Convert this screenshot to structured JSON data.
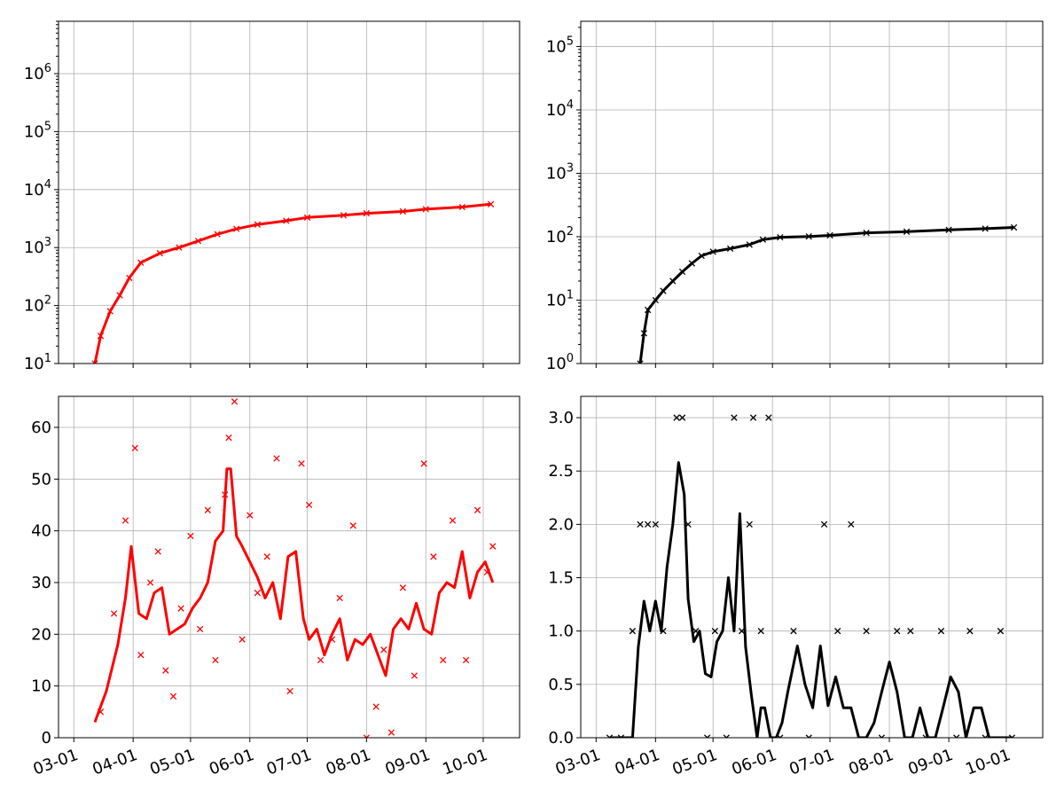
{
  "figure": {
    "x_tick_labels": [
      "03-01",
      "04-01",
      "05-01",
      "06-01",
      "07-01",
      "08-01",
      "09-01",
      "10-01"
    ],
    "x_tick_dates": [
      "2020-03-01",
      "2020-04-01",
      "2020-05-01",
      "2020-06-01",
      "2020-07-01",
      "2020-08-01",
      "2020-09-01",
      "2020-10-01"
    ],
    "x_range": [
      "2020-02-22",
      "2020-10-20"
    ],
    "x_tick_rotation_deg": 20
  },
  "chart_data": [
    {
      "type": "line",
      "title": "",
      "xlabel": "",
      "ylabel": "",
      "yscale": "log",
      "ylim": [
        10,
        8000000
      ],
      "y_tick_labels": [
        "10^1",
        "10^2",
        "10^3",
        "10^4",
        "10^5",
        "10^6"
      ],
      "grid": true,
      "color": "#ff0000",
      "marker": "x",
      "x": [
        "2020-03-12",
        "2020-03-15",
        "2020-03-20",
        "2020-03-25",
        "2020-03-30",
        "2020-04-05",
        "2020-04-15",
        "2020-04-25",
        "2020-05-05",
        "2020-05-15",
        "2020-05-25",
        "2020-06-05",
        "2020-06-20",
        "2020-07-01",
        "2020-07-20",
        "2020-08-01",
        "2020-08-20",
        "2020-09-01",
        "2020-09-20",
        "2020-10-05"
      ],
      "values": [
        10,
        30,
        80,
        150,
        300,
        550,
        800,
        1000,
        1300,
        1700,
        2100,
        2500,
        2900,
        3300,
        3600,
        3900,
        4200,
        4600,
        5000,
        5600
      ]
    },
    {
      "type": "line",
      "title": "",
      "xlabel": "",
      "ylabel": "",
      "yscale": "log",
      "ylim": [
        1,
        250000
      ],
      "y_tick_labels": [
        "10^0",
        "10^1",
        "10^2",
        "10^3",
        "10^4",
        "10^5"
      ],
      "grid": true,
      "color": "#000000",
      "marker": "x",
      "x": [
        "2020-03-24",
        "2020-03-26",
        "2020-03-28",
        "2020-04-01",
        "2020-04-05",
        "2020-04-10",
        "2020-04-15",
        "2020-04-20",
        "2020-04-25",
        "2020-05-01",
        "2020-05-10",
        "2020-05-20",
        "2020-05-27",
        "2020-06-05",
        "2020-06-20",
        "2020-07-01",
        "2020-07-20",
        "2020-08-10",
        "2020-09-01",
        "2020-09-20",
        "2020-10-05"
      ],
      "values": [
        1,
        3,
        7,
        10,
        14,
        20,
        28,
        38,
        50,
        58,
        65,
        75,
        90,
        98,
        101,
        105,
        115,
        120,
        128,
        134,
        140
      ]
    },
    {
      "type": "line",
      "title": "",
      "xlabel": "",
      "ylabel": "",
      "ylim": [
        0,
        66
      ],
      "y_tick_labels": [
        "0",
        "10",
        "20",
        "30",
        "40",
        "50",
        "60"
      ],
      "grid": true,
      "color": "#ff0000",
      "marker": "x",
      "series": [
        {
          "kind": "line",
          "x": [
            "2020-03-12",
            "2020-03-18",
            "2020-03-24",
            "2020-03-28",
            "2020-03-31",
            "2020-04-04",
            "2020-04-08",
            "2020-04-12",
            "2020-04-16",
            "2020-04-20",
            "2020-04-24",
            "2020-04-28",
            "2020-05-02",
            "2020-05-06",
            "2020-05-10",
            "2020-05-14",
            "2020-05-18",
            "2020-05-20",
            "2020-05-22",
            "2020-05-25",
            "2020-05-28",
            "2020-06-01",
            "2020-06-05",
            "2020-06-09",
            "2020-06-13",
            "2020-06-17",
            "2020-06-21",
            "2020-06-25",
            "2020-06-29",
            "2020-07-02",
            "2020-07-06",
            "2020-07-10",
            "2020-07-14",
            "2020-07-18",
            "2020-07-22",
            "2020-07-26",
            "2020-07-30",
            "2020-08-03",
            "2020-08-07",
            "2020-08-11",
            "2020-08-15",
            "2020-08-19",
            "2020-08-23",
            "2020-08-27",
            "2020-08-31",
            "2020-09-04",
            "2020-09-08",
            "2020-09-12",
            "2020-09-16",
            "2020-09-20",
            "2020-09-24",
            "2020-09-28",
            "2020-10-02",
            "2020-10-06"
          ],
          "values": [
            3,
            9,
            18,
            27,
            37,
            24,
            23,
            28,
            29,
            20,
            21,
            22,
            25,
            27,
            30,
            38,
            40,
            52,
            52,
            39,
            37,
            34,
            31,
            27,
            30,
            23,
            35,
            36,
            23,
            19,
            21,
            16,
            20,
            23,
            15,
            19,
            18,
            20,
            16,
            12,
            21,
            23,
            21,
            26,
            21,
            20,
            28,
            30,
            29,
            36,
            27,
            32,
            34,
            30
          ]
        },
        {
          "kind": "scatter",
          "x": [
            "2020-03-15",
            "2020-03-22",
            "2020-03-28",
            "2020-04-02",
            "2020-04-05",
            "2020-04-10",
            "2020-04-14",
            "2020-04-18",
            "2020-04-22",
            "2020-04-26",
            "2020-05-01",
            "2020-05-06",
            "2020-05-10",
            "2020-05-14",
            "2020-05-19",
            "2020-05-21",
            "2020-05-24",
            "2020-05-28",
            "2020-06-01",
            "2020-06-05",
            "2020-06-10",
            "2020-06-15",
            "2020-06-22",
            "2020-06-28",
            "2020-07-02",
            "2020-07-08",
            "2020-07-14",
            "2020-07-18",
            "2020-07-25",
            "2020-08-01",
            "2020-08-06",
            "2020-08-10",
            "2020-08-14",
            "2020-08-20",
            "2020-08-26",
            "2020-08-31",
            "2020-09-05",
            "2020-09-10",
            "2020-09-15",
            "2020-09-22",
            "2020-09-28",
            "2020-10-03",
            "2020-10-06"
          ],
          "values": [
            5,
            24,
            42,
            56,
            16,
            30,
            36,
            13,
            8,
            25,
            39,
            21,
            44,
            15,
            47,
            58,
            65,
            19,
            43,
            28,
            35,
            54,
            9,
            53,
            45,
            15,
            19,
            27,
            41,
            0,
            6,
            17,
            1,
            29,
            12,
            53,
            35,
            15,
            42,
            15,
            44,
            32,
            37
          ]
        }
      ]
    },
    {
      "type": "line",
      "title": "",
      "xlabel": "",
      "ylabel": "",
      "ylim": [
        0,
        3.2
      ],
      "y_tick_labels": [
        "0.0",
        "0.5",
        "1.0",
        "1.5",
        "2.0",
        "2.5",
        "3.0"
      ],
      "grid": true,
      "color": "#000000",
      "marker": "x",
      "series": [
        {
          "kind": "line",
          "x": [
            "2020-03-08",
            "2020-03-20",
            "2020-03-23",
            "2020-03-26",
            "2020-03-29",
            "2020-04-01",
            "2020-04-04",
            "2020-04-07",
            "2020-04-10",
            "2020-04-13",
            "2020-04-16",
            "2020-04-18",
            "2020-04-21",
            "2020-04-24",
            "2020-04-27",
            "2020-04-30",
            "2020-05-03",
            "2020-05-06",
            "2020-05-09",
            "2020-05-12",
            "2020-05-15",
            "2020-05-18",
            "2020-05-21",
            "2020-05-24",
            "2020-05-26",
            "2020-05-28",
            "2020-05-31",
            "2020-06-03",
            "2020-06-06",
            "2020-06-09",
            "2020-06-14",
            "2020-06-18",
            "2020-06-22",
            "2020-06-26",
            "2020-06-30",
            "2020-07-04",
            "2020-07-08",
            "2020-07-12",
            "2020-07-16",
            "2020-07-20",
            "2020-07-24",
            "2020-07-28",
            "2020-08-01",
            "2020-08-05",
            "2020-08-09",
            "2020-08-13",
            "2020-08-17",
            "2020-08-21",
            "2020-08-25",
            "2020-08-29",
            "2020-09-02",
            "2020-09-06",
            "2020-09-10",
            "2020-09-14",
            "2020-09-18",
            "2020-09-22",
            "2020-09-26",
            "2020-09-30",
            "2020-10-04"
          ],
          "values": [
            0,
            0,
            0.85,
            1.28,
            1.0,
            1.28,
            1.0,
            1.6,
            2.0,
            2.58,
            2.28,
            1.3,
            0.9,
            1.0,
            0.6,
            0.57,
            0.9,
            1.0,
            1.5,
            1.0,
            2.1,
            0.85,
            0.4,
            0.0,
            0.28,
            0.28,
            0.0,
            0.0,
            0.14,
            0.43,
            0.86,
            0.5,
            0.28,
            0.86,
            0.3,
            0.57,
            0.28,
            0.28,
            0.0,
            0.0,
            0.14,
            0.43,
            0.71,
            0.43,
            0.0,
            0.0,
            0.28,
            0.0,
            0.0,
            0.28,
            0.57,
            0.43,
            0.0,
            0.28,
            0.28,
            0.0,
            0,
            0,
            0
          ]
        },
        {
          "kind": "scatter",
          "x": [
            "2020-03-08",
            "2020-03-14",
            "2020-03-20",
            "2020-03-24",
            "2020-03-28",
            "2020-04-01",
            "2020-04-05",
            "2020-04-12",
            "2020-04-15",
            "2020-04-18",
            "2020-04-22",
            "2020-04-28",
            "2020-05-02",
            "2020-05-08",
            "2020-05-12",
            "2020-05-16",
            "2020-05-20",
            "2020-05-22",
            "2020-05-26",
            "2020-05-30",
            "2020-06-05",
            "2020-06-12",
            "2020-06-20",
            "2020-06-28",
            "2020-07-05",
            "2020-07-12",
            "2020-07-20",
            "2020-07-28",
            "2020-08-05",
            "2020-08-12",
            "2020-08-20",
            "2020-08-28",
            "2020-09-05",
            "2020-09-12",
            "2020-09-20",
            "2020-09-28",
            "2020-10-04"
          ],
          "values": [
            0,
            0,
            1,
            2,
            2,
            2,
            1,
            3,
            3,
            2,
            1,
            0,
            1,
            0,
            3,
            1,
            2,
            3,
            1,
            3,
            0,
            1,
            0,
            2,
            1,
            2,
            1,
            0,
            1,
            1,
            0,
            1,
            0,
            1,
            0,
            1,
            0
          ]
        }
      ]
    }
  ]
}
